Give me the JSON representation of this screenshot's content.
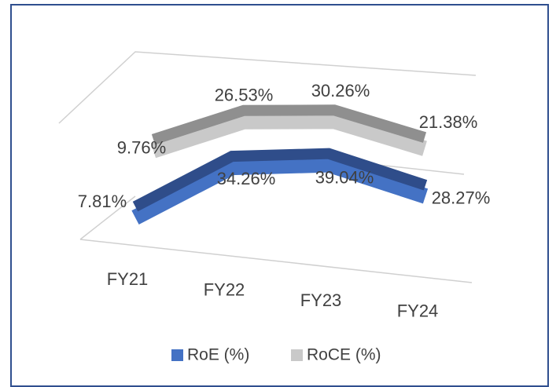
{
  "chart_data": {
    "type": "line3d",
    "categories": [
      "FY21",
      "FY22",
      "FY23",
      "FY24"
    ],
    "series": [
      {
        "name": "RoE (%)",
        "color": "#4472c4",
        "values": [
          7.81,
          34.26,
          39.04,
          28.27
        ],
        "value_labels": [
          "7.81%",
          "34.26%",
          "39.04%",
          "28.27%"
        ]
      },
      {
        "name": "RoCE (%)",
        "color": "#c9c9c9",
        "values": [
          9.76,
          26.53,
          30.26,
          21.38
        ],
        "value_labels": [
          "9.76%",
          "26.53%",
          "30.26%",
          "21.38%"
        ]
      }
    ],
    "legend": "bottom"
  }
}
